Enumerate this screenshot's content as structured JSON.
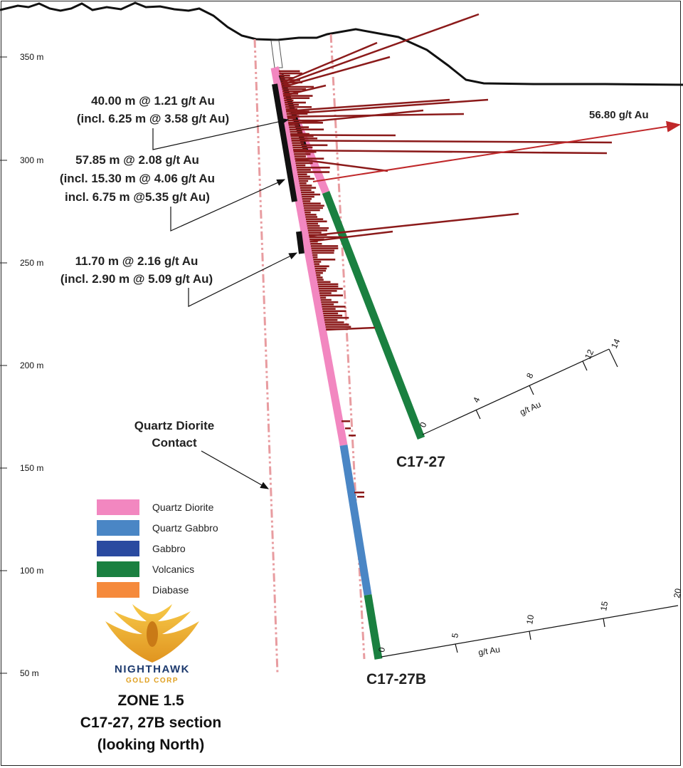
{
  "elevation_labels": [
    "350 m",
    "300 m",
    "250 m",
    "200 m",
    "150 m",
    "100 m",
    "50 m"
  ],
  "annotations": {
    "a1": [
      "40.00 m @ 1.21 g/t Au",
      "(incl. 6.25 m @ 3.58 g/t Au)"
    ],
    "a2": [
      "57.85 m @ 2.08 g/t Au",
      "(incl. 15.30 m @ 4.06 g/t Au",
      "incl. 6.75 m @5.35 g/t Au)"
    ],
    "a3": [
      "11.70 m @ 2.16 g/t Au",
      "(incl.  2.90 m @ 5.09 g/t Au)"
    ],
    "max_value": "56.80 g/t Au",
    "contact": [
      "Quartz Diorite",
      "Contact"
    ]
  },
  "holes": {
    "h1": "C17-27",
    "h2": "C17-27B"
  },
  "scales": {
    "s1": {
      "ticks": [
        "0",
        "4",
        "8",
        "12",
        "14"
      ],
      "unit": "g/t Au"
    },
    "s2": {
      "ticks": [
        "0",
        "5",
        "10",
        "15",
        "20"
      ],
      "unit": "g/t Au"
    }
  },
  "legend": [
    {
      "label": "Quartz Diorite",
      "color": "#f287c0"
    },
    {
      "label": "Quartz Gabbro",
      "color": "#4a86c5"
    },
    {
      "label": "Gabbro",
      "color": "#2a4aa0"
    },
    {
      "label": "Volcanics",
      "color": "#1a8040"
    },
    {
      "label": "Diabase",
      "color": "#f58a3c"
    }
  ],
  "logo": {
    "name": "NIGHTHAWK",
    "sub": "GOLD CORP"
  },
  "title": [
    "ZONE 1.5",
    "C17-27, 27B section",
    "(looking North)"
  ]
}
